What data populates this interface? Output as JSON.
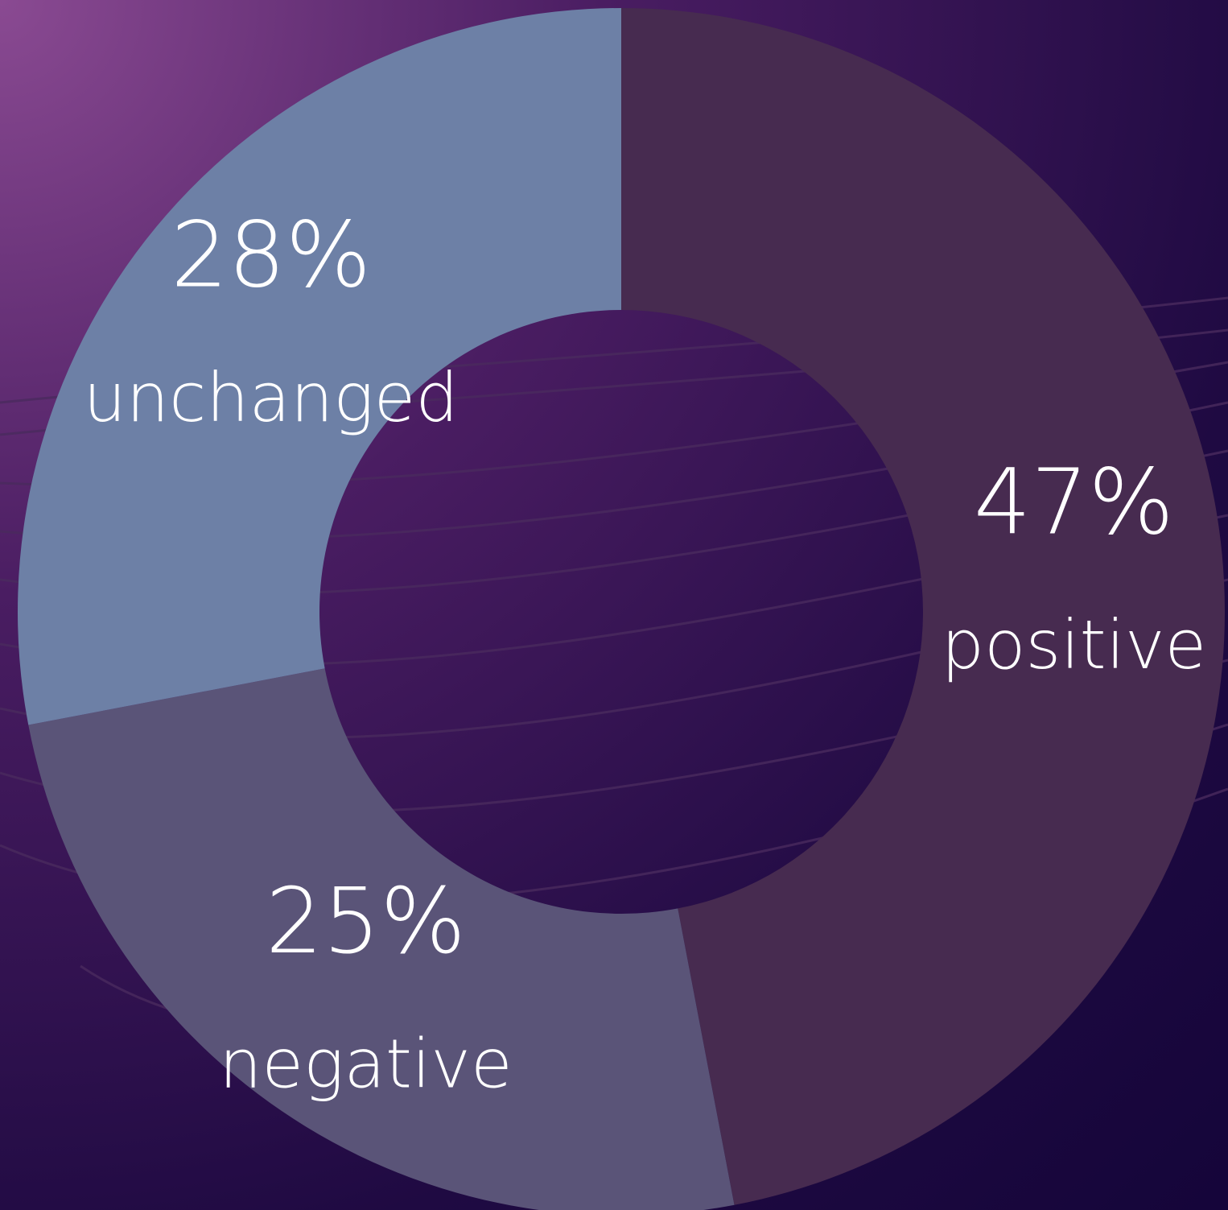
{
  "chart_data": {
    "type": "donut",
    "categories": [
      "positive",
      "negative",
      "unchanged"
    ],
    "values": [
      47,
      25,
      28
    ],
    "value_labels": [
      "47%",
      "25%",
      "28%"
    ],
    "colors": [
      "#472b50",
      "#5a5478",
      "#6d80a6"
    ]
  }
}
